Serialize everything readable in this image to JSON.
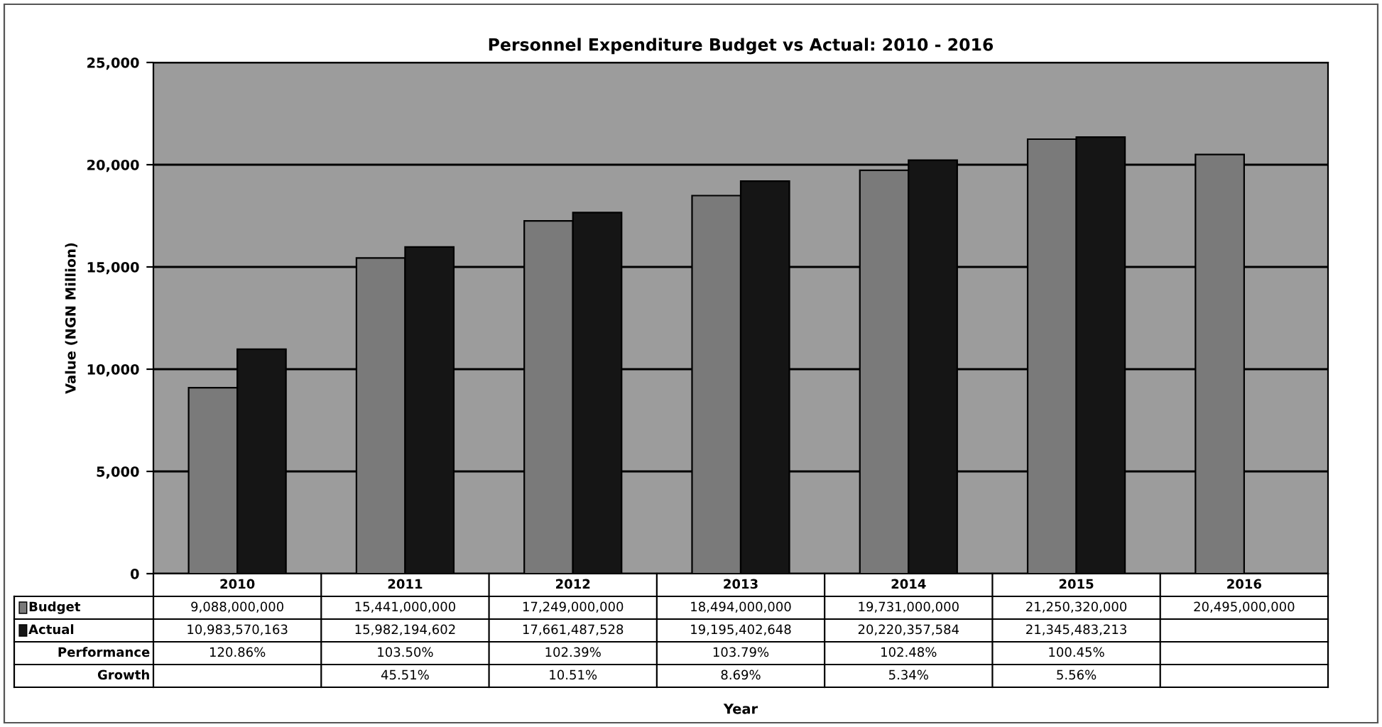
{
  "chart_data": {
    "type": "bar",
    "title": "Personnel Expenditure Budget vs Actual: 2010 - 2016",
    "ylabel": "Value (NGN Million)",
    "categories": [
      "2010",
      "2011",
      "2012",
      "2013",
      "2014",
      "2015",
      "2016"
    ],
    "series": [
      {
        "name": "Budget",
        "color": "#7a7a7a",
        "values": [
          9090,
          15440,
          17250,
          18490,
          19730,
          21250,
          20500
        ]
      },
      {
        "name": "Actual",
        "color": "#151515",
        "values": [
          10980,
          15980,
          17660,
          19200,
          20220,
          21350,
          null
        ]
      }
    ],
    "ylim": [
      0,
      25000
    ],
    "yticks": [
      {
        "value": 0,
        "label": "0"
      },
      {
        "value": 5000,
        "label": "5,000"
      },
      {
        "value": 10000,
        "label": "10,000"
      },
      {
        "value": 15000,
        "label": "15,000"
      },
      {
        "value": 20000,
        "label": "20,000"
      },
      {
        "value": 25000,
        "label": "25,000"
      }
    ],
    "grid": "y",
    "legend": "bottom left",
    "annotations": [
      "9,088,000,000",
      "15,441,000,000",
      "17,249,000,000",
      "18,494,000,000",
      "19,731,000,000",
      "21,250,320,000",
      "20,495,000,000",
      "10,983,570,163",
      "15,982,194,602",
      "17,661,487,528",
      "19,195,402,648",
      "20,220,357,584",
      "21,345,483,213",
      "Performance",
      "120.86%",
      "103.50%",
      "102.39%",
      "103.79%",
      "102.48%",
      "100.45%",
      "Growth",
      "45.51%",
      "10.51%",
      "8.69%",
      "5.34%",
      "5.56%",
      "Year"
    ]
  }
}
